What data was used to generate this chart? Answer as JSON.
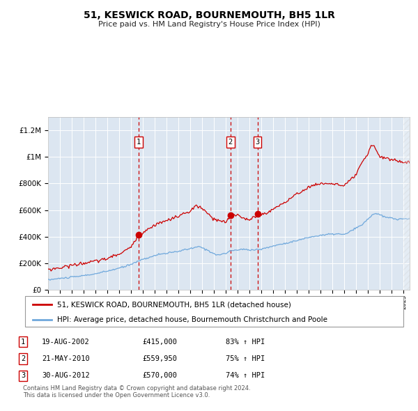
{
  "title": "51, KESWICK ROAD, BOURNEMOUTH, BH5 1LR",
  "subtitle": "Price paid vs. HM Land Registry's House Price Index (HPI)",
  "legend_line1": "51, KESWICK ROAD, BOURNEMOUTH, BH5 1LR (detached house)",
  "legend_line2": "HPI: Average price, detached house, Bournemouth Christchurch and Poole",
  "footer1": "Contains HM Land Registry data © Crown copyright and database right 2024.",
  "footer2": "This data is licensed under the Open Government Licence v3.0.",
  "table": [
    {
      "num": 1,
      "date": "19-AUG-2002",
      "price": "£415,000",
      "hpi": "83% ↑ HPI"
    },
    {
      "num": 2,
      "date": "21-MAY-2010",
      "price": "£559,950",
      "hpi": "75% ↑ HPI"
    },
    {
      "num": 3,
      "date": "30-AUG-2012",
      "price": "£570,000",
      "hpi": "74% ↑ HPI"
    }
  ],
  "sale_dates_decimal": [
    2002.638,
    2010.386,
    2012.662
  ],
  "sale_prices": [
    415000,
    559950,
    570000
  ],
  "hpi_color": "#6fa8dc",
  "price_color": "#cc0000",
  "plot_bg_color": "#dce6f1",
  "grid_color": "#ffffff",
  "dashed_color": "#cc0000",
  "ylim": [
    0,
    1300000
  ],
  "xlim_start": 1995.0,
  "xlim_end": 2025.5,
  "hpi_keypoints": [
    [
      1995.0,
      75000
    ],
    [
      1996.0,
      85000
    ],
    [
      1997.5,
      100000
    ],
    [
      1999.0,
      120000
    ],
    [
      2000.0,
      140000
    ],
    [
      2001.5,
      175000
    ],
    [
      2003.0,
      230000
    ],
    [
      2004.5,
      270000
    ],
    [
      2005.5,
      280000
    ],
    [
      2007.0,
      310000
    ],
    [
      2007.8,
      325000
    ],
    [
      2008.5,
      295000
    ],
    [
      2009.3,
      260000
    ],
    [
      2010.0,
      275000
    ],
    [
      2010.5,
      295000
    ],
    [
      2011.5,
      305000
    ],
    [
      2012.0,
      300000
    ],
    [
      2013.0,
      305000
    ],
    [
      2014.0,
      330000
    ],
    [
      2015.0,
      350000
    ],
    [
      2016.0,
      370000
    ],
    [
      2017.0,
      395000
    ],
    [
      2018.0,
      410000
    ],
    [
      2019.0,
      420000
    ],
    [
      2019.5,
      420000
    ],
    [
      2020.0,
      415000
    ],
    [
      2021.0,
      465000
    ],
    [
      2021.5,
      490000
    ],
    [
      2022.0,
      535000
    ],
    [
      2022.5,
      575000
    ],
    [
      2022.8,
      570000
    ],
    [
      2023.5,
      545000
    ],
    [
      2024.0,
      540000
    ],
    [
      2024.5,
      530000
    ],
    [
      2025.2,
      535000
    ]
  ],
  "price_keypoints": [
    [
      1995.0,
      152000
    ],
    [
      1996.0,
      165000
    ],
    [
      1997.0,
      185000
    ],
    [
      1998.0,
      200000
    ],
    [
      1999.0,
      215000
    ],
    [
      2000.0,
      235000
    ],
    [
      2001.0,
      270000
    ],
    [
      2002.0,
      320000
    ],
    [
      2002.638,
      415000
    ],
    [
      2003.0,
      430000
    ],
    [
      2004.0,
      490000
    ],
    [
      2005.0,
      520000
    ],
    [
      2006.0,
      555000
    ],
    [
      2007.0,
      590000
    ],
    [
      2007.5,
      635000
    ],
    [
      2008.0,
      610000
    ],
    [
      2009.0,
      530000
    ],
    [
      2010.0,
      505000
    ],
    [
      2010.386,
      559950
    ],
    [
      2011.0,
      565000
    ],
    [
      2012.0,
      520000
    ],
    [
      2012.662,
      570000
    ],
    [
      2013.0,
      565000
    ],
    [
      2013.5,
      580000
    ],
    [
      2014.0,
      610000
    ],
    [
      2015.0,
      660000
    ],
    [
      2016.0,
      720000
    ],
    [
      2017.0,
      775000
    ],
    [
      2018.0,
      800000
    ],
    [
      2019.0,
      800000
    ],
    [
      2020.0,
      780000
    ],
    [
      2021.0,
      870000
    ],
    [
      2021.5,
      960000
    ],
    [
      2022.0,
      1020000
    ],
    [
      2022.2,
      1080000
    ],
    [
      2022.5,
      1090000
    ],
    [
      2022.7,
      1050000
    ],
    [
      2023.0,
      1000000
    ],
    [
      2023.5,
      990000
    ],
    [
      2024.0,
      980000
    ],
    [
      2024.5,
      970000
    ],
    [
      2025.0,
      960000
    ]
  ]
}
